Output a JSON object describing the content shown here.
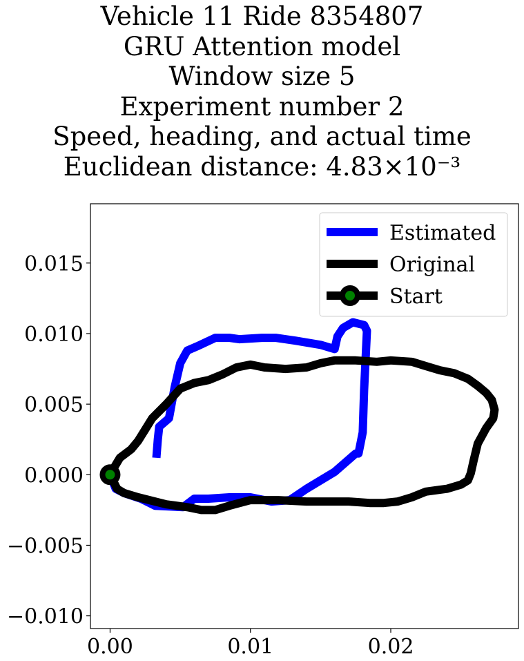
{
  "title_lines": [
    "Vehicle 11 Ride 8354807",
    "GRU Attention model",
    "Window size 5",
    "Experiment number 2",
    "Speed, heading, and actual time",
    "Euclidean distance: 4.83×10⁻³"
  ],
  "chart_data": {
    "type": "line",
    "title": "Vehicle 11 Ride 8354807\nGRU Attention model\nWindow size 5\nExperiment number 2\nSpeed, heading, and actual time\nEuclidean distance: 4.83×10⁻³",
    "xlabel": "",
    "ylabel": "",
    "xlim": [
      -0.0014,
      0.0291
    ],
    "ylim": [
      -0.0109,
      0.0192
    ],
    "grid": false,
    "legend_position": "top-right",
    "x_ticks": [
      0.0,
      0.01,
      0.02
    ],
    "x_tick_labels": [
      "0.00",
      "0.01",
      "0.02"
    ],
    "y_ticks": [
      -0.01,
      -0.005,
      0.0,
      0.005,
      0.01,
      0.015
    ],
    "y_tick_labels": [
      "−0.010",
      "−0.005",
      "0.000",
      "0.005",
      "0.010",
      "0.015"
    ],
    "series": [
      {
        "name": "Estimated",
        "color": "#0000ff",
        "x": [
          0.0033,
          0.0034,
          0.0035,
          0.0042,
          0.0046,
          0.005,
          0.0055,
          0.0062,
          0.0075,
          0.0085,
          0.0092,
          0.0108,
          0.0118,
          0.0132,
          0.015,
          0.016,
          0.0162,
          0.0166,
          0.0173,
          0.0181,
          0.0183,
          0.0181,
          0.018,
          0.0177,
          0.0175,
          0.016,
          0.014,
          0.0128,
          0.0115,
          0.01,
          0.0085,
          0.007,
          0.006,
          0.0052,
          0.0032,
          0.0022,
          0.001,
          0.0004,
          0.0
        ],
        "y": [
          0.0012,
          0.0025,
          0.0034,
          0.004,
          0.0062,
          0.0079,
          0.0088,
          0.0091,
          0.0097,
          0.0097,
          0.0096,
          0.0097,
          0.0097,
          0.0095,
          0.0092,
          0.0089,
          0.0098,
          0.0104,
          0.0108,
          0.0106,
          0.0102,
          0.006,
          0.003,
          0.0015,
          0.0015,
          0.0002,
          -0.001,
          -0.0018,
          -0.0019,
          -0.0016,
          -0.0016,
          -0.0017,
          -0.0017,
          -0.0023,
          -0.0022,
          -0.0017,
          -0.0013,
          -0.001,
          0.0
        ]
      },
      {
        "name": "Original",
        "color": "#000000",
        "x": [
          0.0,
          0.0004,
          0.0007,
          0.0015,
          0.002,
          0.0025,
          0.003,
          0.004,
          0.005,
          0.006,
          0.007,
          0.008,
          0.009,
          0.01,
          0.011,
          0.0125,
          0.014,
          0.015,
          0.016,
          0.0175,
          0.019,
          0.02,
          0.0215,
          0.0225,
          0.0235,
          0.0245,
          0.0255,
          0.0262,
          0.0268,
          0.0272,
          0.0274,
          0.0273,
          0.0268,
          0.0262,
          0.0259,
          0.0257,
          0.0255,
          0.025,
          0.024,
          0.0225,
          0.0215,
          0.0205,
          0.0195,
          0.0185,
          0.017,
          0.0155,
          0.014,
          0.012,
          0.01,
          0.0085,
          0.0075,
          0.0065,
          0.0055,
          0.004,
          0.002,
          0.001,
          0.0005,
          0.0
        ],
        "y": [
          0.0,
          0.0007,
          0.0012,
          0.0018,
          0.0024,
          0.0032,
          0.004,
          0.005,
          0.0061,
          0.0065,
          0.0067,
          0.0071,
          0.0076,
          0.0078,
          0.0076,
          0.0075,
          0.0076,
          0.0079,
          0.0081,
          0.0081,
          0.008,
          0.0081,
          0.008,
          0.0077,
          0.0074,
          0.0072,
          0.0068,
          0.0063,
          0.0058,
          0.0053,
          0.0046,
          0.004,
          0.0033,
          0.0022,
          0.001,
          0.0001,
          -0.0004,
          -0.0007,
          -0.001,
          -0.0012,
          -0.0016,
          -0.0019,
          -0.002,
          -0.002,
          -0.0019,
          -0.0019,
          -0.0019,
          -0.0018,
          -0.0018,
          -0.0022,
          -0.0025,
          -0.0025,
          -0.0023,
          -0.0021,
          -0.0016,
          -0.0013,
          -0.001,
          0.0
        ]
      }
    ],
    "start_point": {
      "name": "Start",
      "x": 0.0,
      "y": 0.0,
      "marker_color": "#008000",
      "edge_color": "#000000"
    }
  }
}
